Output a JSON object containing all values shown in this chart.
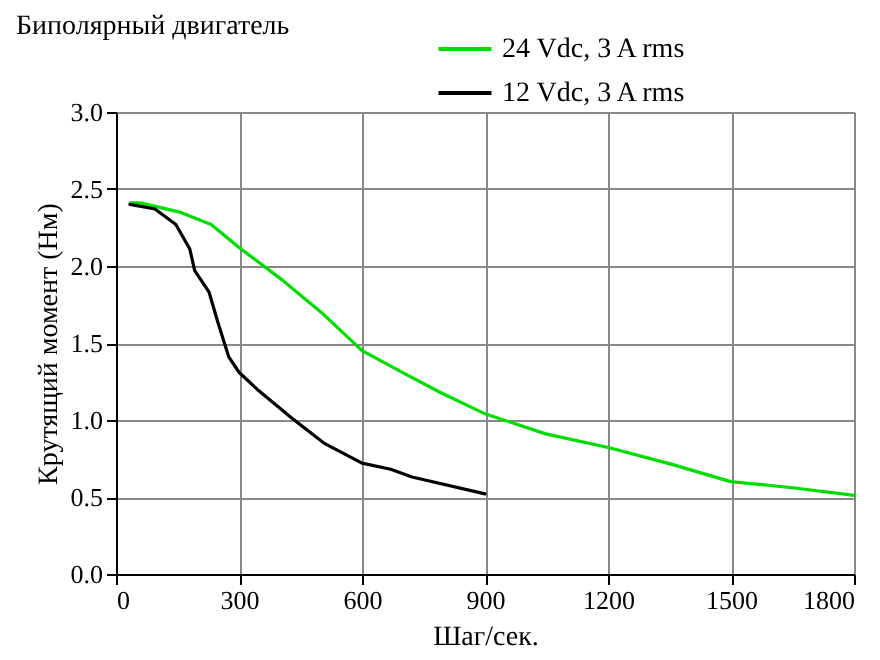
{
  "chart_data": {
    "type": "line",
    "title": "Биполярный двигатель",
    "xlabel": "Шаг/сек.",
    "ylabel": "Крутящий момент (Нм)",
    "xlim": [
      0,
      1800
    ],
    "xticks": [
      0,
      300,
      600,
      900,
      1200,
      1500,
      1800
    ],
    "ylim": [
      0,
      3
    ],
    "yticks": [
      {
        "value": 0,
        "label": "0.0"
      },
      {
        "value": 0.5,
        "label": "0.5"
      },
      {
        "value": 1,
        "label": "1.0"
      },
      {
        "value": 1.5,
        "label": "1.5"
      },
      {
        "value": 2,
        "label": "2.0"
      },
      {
        "value": 2.5,
        "label": "2.5"
      },
      {
        "value": 3,
        "label": "3.0"
      }
    ],
    "grid": true,
    "legend": "top right",
    "marker": "none",
    "line_style": "solid",
    "series": [
      {
        "name": "24 Vdc, 3 A rms",
        "color": "#00dd00",
        "x": [
          35,
          60,
          155,
          232,
          300,
          405,
          450,
          500,
          600,
          705,
          790,
          900,
          1048,
          1203,
          1358,
          1499,
          1650,
          1800
        ],
        "values": [
          2.41,
          2.41,
          2.35,
          2.27,
          2.12,
          1.91,
          1.81,
          1.7,
          1.45,
          1.3,
          1.18,
          1.04,
          0.91,
          0.82,
          0.71,
          0.6,
          0.56,
          0.51
        ]
      },
      {
        "name": "12 Vdc, 3 A rms",
        "color": "#000000",
        "x": [
          34,
          95,
          146,
          180,
          192,
          227,
          249,
          275,
          300,
          344,
          430,
          507,
          600,
          670,
          722,
          900
        ],
        "values": [
          2.4,
          2.37,
          2.27,
          2.11,
          1.97,
          1.83,
          1.63,
          1.41,
          1.31,
          1.2,
          1.01,
          0.85,
          0.72,
          0.68,
          0.63,
          0.52
        ]
      }
    ]
  }
}
